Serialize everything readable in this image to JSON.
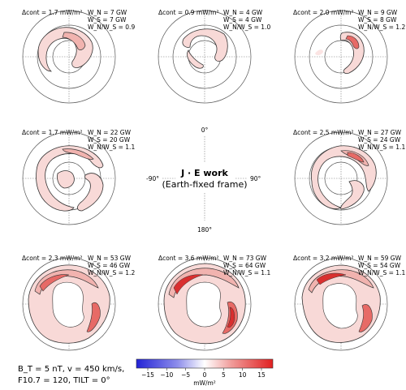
{
  "panels": [
    {
      "dcont": "Δcont = 1.7 mW/m²",
      "wn": "W_N = 7 GW",
      "ws": "W_S = 7 GW",
      "ratio": "W_N/W_S = 0.9"
    },
    {
      "dcont": "Δcont = 0.9 mW/m²",
      "wn": "W_N = 4 GW",
      "ws": "W_S = 4 GW",
      "ratio": "W_N/W_S = 1.0"
    },
    {
      "dcont": "Δcont = 2.0 mW/m²",
      "wn": "W_N = 9 GW",
      "ws": "W_S = 8 GW",
      "ratio": "W_N/W_S = 1.2"
    },
    {
      "dcont": "Δcont = 1.7 mW/m²",
      "wn": "W_N = 22 GW",
      "ws": "W_S = 20 GW",
      "ratio": "W_N/W_S = 1.1"
    },
    {
      "dcont": "Δcont = 2.5 mW/m²",
      "wn": "W_N = 27 GW",
      "ws": "W_S = 24 GW",
      "ratio": "W_N/W_S = 1.1"
    },
    {
      "dcont": "Δcont = 2.3 mW/m²",
      "wn": "W_N = 53 GW",
      "ws": "W_S = 46 GW",
      "ratio": "W_N/W_S = 1.2"
    },
    {
      "dcont": "Δcont = 3.6 mW/m²",
      "wn": "W_N = 73 GW",
      "ws": "W_S = 64 GW",
      "ratio": "W_N/W_S = 1.1"
    },
    {
      "dcont": "Δcont = 3.2 mW/m²",
      "wn": "W_N = 59 GW",
      "ws": "W_S = 54 GW",
      "ratio": "W_N/W_S = 1.1"
    }
  ],
  "center": {
    "top_label": "0°",
    "left_label": "-90°",
    "right_label": "90°",
    "bottom_label": "180°",
    "title_line1": "J · E work",
    "title_line2": "(Earth-fixed frame)"
  },
  "conditions": {
    "line1": "B_T = 5 nT, v = 450 km/s,",
    "line2": "F10.7 = 120, TILT = 0°"
  },
  "colorbar": {
    "ticks": [
      "−15",
      "−10",
      "−5",
      "0",
      "5",
      "10",
      "15"
    ],
    "unit": "mW/m²",
    "colors": {
      "negative": "#2b2bd9",
      "zero": "#ffffff",
      "positive": "#e02828"
    }
  }
}
